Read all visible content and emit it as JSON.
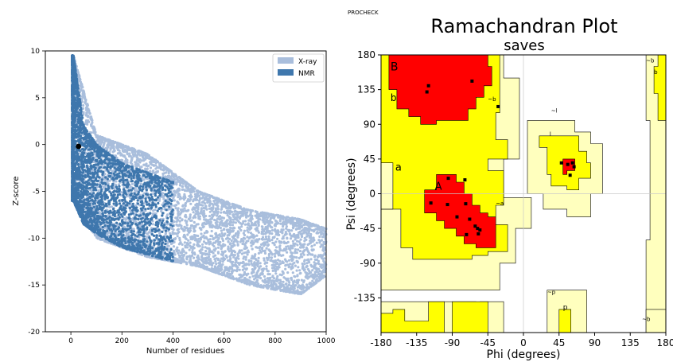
{
  "colors": {
    "xray": "#a9bedc",
    "nmr": "#3f77ad",
    "marker": "#000000",
    "core": "#ff0000",
    "allowed": "#ffff00",
    "generous": "#ffffbe",
    "disallowed": "#ffffff"
  },
  "chart_data": [
    {
      "type": "scatter",
      "xlabel": "Number of residues",
      "ylabel": "Z-score",
      "xlim": [
        -100,
        1000
      ],
      "ylim": [
        -20,
        10
      ],
      "x_ticks": [
        "0",
        "200",
        "400",
        "600",
        "800",
        "1000"
      ],
      "y_ticks": [
        "10",
        "5",
        "0",
        "-5",
        "-10",
        "-15",
        "-20"
      ],
      "legend_position": "top-right",
      "series": [
        {
          "name": "X-ray",
          "x_range": [
            5,
            1000
          ],
          "z_upper_at": [
            [
              10,
              9.5
            ],
            [
              100,
              1
            ],
            [
              300,
              -1
            ],
            [
              500,
              -5
            ],
            [
              700,
              -7
            ],
            [
              900,
              -8
            ],
            [
              1000,
              -9
            ]
          ],
          "z_lower_at": [
            [
              10,
              -6
            ],
            [
              100,
              -10
            ],
            [
              300,
              -12
            ],
            [
              500,
              -13
            ],
            [
              700,
              -15
            ],
            [
              900,
              -16
            ],
            [
              1000,
              -14
            ]
          ]
        },
        {
          "name": "NMR",
          "x_range": [
            5,
            400
          ],
          "z_upper_at": [
            [
              10,
              9.5
            ],
            [
              50,
              2
            ],
            [
              100,
              0
            ],
            [
              200,
              -2
            ],
            [
              400,
              -4
            ]
          ],
          "z_lower_at": [
            [
              10,
              -6
            ],
            [
              50,
              -8.5
            ],
            [
              100,
              -9.5
            ],
            [
              200,
              -11
            ],
            [
              400,
              -12.5
            ]
          ]
        }
      ],
      "highlight_point": {
        "x": 30,
        "y": -0.2
      }
    },
    {
      "type": "scatter",
      "header_label": "PROCHECK",
      "title": "Ramachandran Plot",
      "subtitle": "saves",
      "xlabel": "Phi (degrees)",
      "ylabel": "Psi (degrees)",
      "xlim": [
        -180,
        180
      ],
      "ylim": [
        -180,
        180
      ],
      "x_ticks": [
        "-180",
        "-135",
        "-90",
        "-45",
        "0",
        "45",
        "90",
        "135",
        "180"
      ],
      "y_ticks": [
        "180",
        "135",
        "90",
        "45",
        "0",
        "-45",
        "-90",
        "-135"
      ],
      "region_labels": [
        "B",
        "b",
        "a",
        "A",
        "~a",
        "~b",
        "b",
        "~l",
        "l",
        "~b",
        "b",
        "~p",
        "p",
        "~b"
      ],
      "residues": [
        [
          -120,
          140
        ],
        [
          -122,
          132
        ],
        [
          -65,
          146
        ],
        [
          -32,
          113
        ],
        [
          -95,
          20
        ],
        [
          -74,
          18
        ],
        [
          -117,
          -12
        ],
        [
          -96,
          -14
        ],
        [
          -73,
          -13
        ],
        [
          -84,
          -30
        ],
        [
          -68,
          -33
        ],
        [
          -61,
          -42
        ],
        [
          -58,
          -45
        ],
        [
          -55,
          -47
        ],
        [
          -57,
          -52
        ],
        [
          -72,
          -53
        ],
        [
          48,
          40
        ],
        [
          56,
          38
        ],
        [
          64,
          35
        ],
        [
          62,
          40
        ],
        [
          59,
          24
        ]
      ]
    }
  ]
}
